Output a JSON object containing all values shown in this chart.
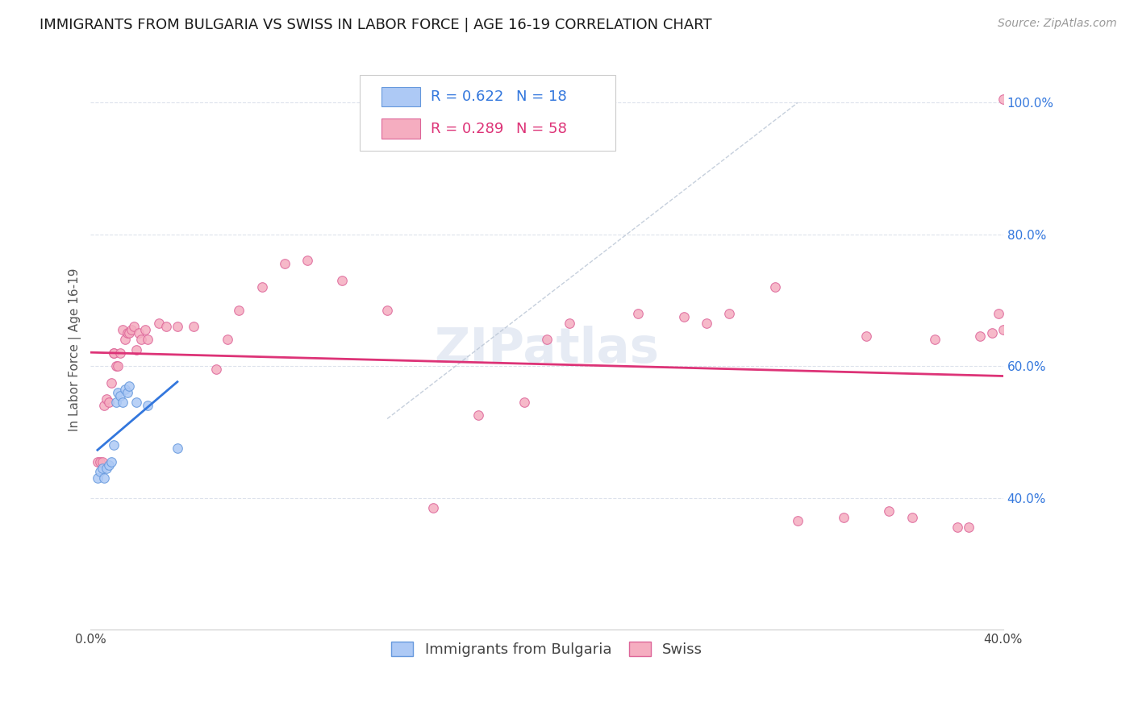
{
  "title": "IMMIGRANTS FROM BULGARIA VS SWISS IN LABOR FORCE | AGE 16-19 CORRELATION CHART",
  "source": "Source: ZipAtlas.com",
  "ylabel": "In Labor Force | Age 16-19",
  "xlim": [
    0.0,
    0.4
  ],
  "ylim": [
    0.2,
    1.05
  ],
  "yticks": [
    0.4,
    0.6,
    0.8,
    1.0
  ],
  "yticklabels": [
    "40.0%",
    "60.0%",
    "80.0%",
    "100.0%"
  ],
  "legend_r1": "R = 0.622",
  "legend_n1": "N = 18",
  "legend_r2": "R = 0.289",
  "legend_n2": "N = 58",
  "bulgaria_color": "#adc9f5",
  "swiss_color": "#f5adc0",
  "bulgaria_edge": "#6699dd",
  "swiss_edge": "#dd6699",
  "trend_bulgaria_color": "#3377dd",
  "trend_swiss_color": "#dd3377",
  "diagonal_color": "#b8c4d4",
  "watermark": "ZIPatlas",
  "bulgaria_x": [
    0.003,
    0.004,
    0.005,
    0.006,
    0.007,
    0.008,
    0.009,
    0.01,
    0.011,
    0.012,
    0.013,
    0.014,
    0.015,
    0.016,
    0.017,
    0.02,
    0.025,
    0.038
  ],
  "bulgaria_y": [
    0.43,
    0.44,
    0.445,
    0.43,
    0.445,
    0.45,
    0.455,
    0.48,
    0.545,
    0.56,
    0.555,
    0.545,
    0.565,
    0.56,
    0.57,
    0.545,
    0.54,
    0.475
  ],
  "swiss_x": [
    0.003,
    0.004,
    0.005,
    0.006,
    0.007,
    0.008,
    0.009,
    0.01,
    0.01,
    0.011,
    0.012,
    0.013,
    0.014,
    0.015,
    0.016,
    0.017,
    0.018,
    0.019,
    0.02,
    0.021,
    0.022,
    0.024,
    0.025,
    0.03,
    0.033,
    0.038,
    0.045,
    0.055,
    0.06,
    0.065,
    0.075,
    0.085,
    0.095,
    0.11,
    0.13,
    0.15,
    0.17,
    0.19,
    0.2,
    0.21,
    0.24,
    0.26,
    0.27,
    0.28,
    0.3,
    0.31,
    0.33,
    0.34,
    0.35,
    0.36,
    0.37,
    0.38,
    0.385,
    0.39,
    0.395,
    0.398,
    0.4,
    0.4
  ],
  "swiss_y": [
    0.455,
    0.455,
    0.455,
    0.54,
    0.55,
    0.545,
    0.575,
    0.62,
    0.62,
    0.6,
    0.6,
    0.62,
    0.655,
    0.64,
    0.65,
    0.65,
    0.655,
    0.66,
    0.625,
    0.65,
    0.64,
    0.655,
    0.64,
    0.665,
    0.66,
    0.66,
    0.66,
    0.595,
    0.64,
    0.685,
    0.72,
    0.755,
    0.76,
    0.73,
    0.685,
    0.385,
    0.525,
    0.545,
    0.64,
    0.665,
    0.68,
    0.675,
    0.665,
    0.68,
    0.72,
    0.365,
    0.37,
    0.645,
    0.38,
    0.37,
    0.64,
    0.355,
    0.355,
    0.645,
    0.65,
    0.68,
    0.655,
    1.005
  ],
  "fig_width": 14.06,
  "fig_height": 8.92,
  "dpi": 100,
  "background_color": "#ffffff",
  "grid_color": "#dde2ec",
  "title_fontsize": 13,
  "axis_fontsize": 11,
  "tick_fontsize": 11,
  "source_fontsize": 10,
  "legend_fontsize": 13,
  "marker_size": 70
}
